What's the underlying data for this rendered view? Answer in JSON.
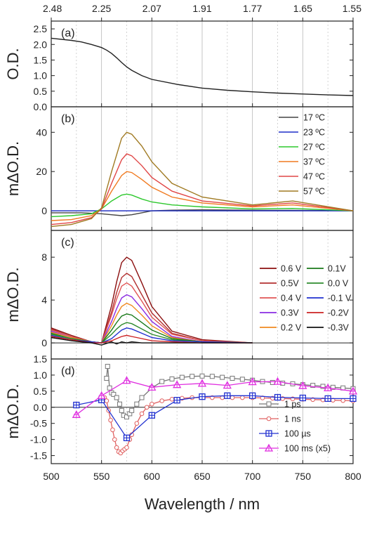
{
  "chart_data": {
    "type": "line",
    "xlabel": "Wavelength / nm",
    "x_ticks": [
      "500",
      "550",
      "600",
      "650",
      "700",
      "750",
      "800"
    ],
    "xlim": [
      500,
      800
    ],
    "energy_axis": {
      "ticks": [
        {
          "label": "2.48",
          "nm": 500
        },
        {
          "label": "2.25",
          "nm": 550
        },
        {
          "label": "2.07",
          "nm": 600
        },
        {
          "label": "1.91",
          "nm": 650
        },
        {
          "label": "1.77",
          "nm": 700
        },
        {
          "label": "1.65",
          "nm": 750
        },
        {
          "label": "1.55",
          "nm": 800
        }
      ]
    },
    "panels": [
      {
        "label": "(a)",
        "ylabel": "O.D.",
        "ylim": [
          0,
          2.75
        ],
        "y_ticks": [
          "0.0",
          "0.5",
          "1.0",
          "1.5",
          "2.0",
          "2.5"
        ],
        "series": [
          {
            "color": "#222222",
            "marker": "none",
            "x": [
              500,
              520,
              530,
              540,
              550,
              555,
              560,
              565,
              570,
              575,
              580,
              590,
              600,
              625,
              650,
              675,
              700,
              725,
              750,
              775,
              800
            ],
            "y": [
              2.2,
              2.13,
              2.08,
              2.0,
              1.9,
              1.82,
              1.71,
              1.57,
              1.42,
              1.28,
              1.17,
              1.0,
              0.88,
              0.72,
              0.6,
              0.53,
              0.48,
              0.44,
              0.41,
              0.38,
              0.36
            ]
          }
        ]
      },
      {
        "label": "(b)",
        "ylabel": "mΔO.D.",
        "ylim": [
          -10,
          53
        ],
        "y_ticks": [
          "0",
          "20",
          "40"
        ],
        "legend_position": "top-right",
        "series": [
          {
            "name": "17 ºC",
            "color": "#444444",
            "marker": "none",
            "x": [
              500,
              530,
              550,
              560,
              570,
              580,
              590,
              600,
              620,
              650,
              700,
              750,
              800
            ],
            "y": [
              -1,
              -1,
              -1.5,
              -2,
              -2.5,
              -2,
              -1,
              0,
              0.3,
              0.5,
              0.3,
              0.2,
              0
            ]
          },
          {
            "name": "23 ºC",
            "color": "#1f2fc8",
            "marker": "none",
            "x": [
              500,
              550,
              600,
              650,
              700,
              750,
              800
            ],
            "y": [
              0,
              0,
              0,
              0,
              0,
              0,
              0
            ]
          },
          {
            "name": "27 ºC",
            "color": "#2dc82d",
            "marker": "none",
            "x": [
              500,
              520,
              540,
              550,
              560,
              570,
              575,
              580,
              590,
              600,
              620,
              650,
              700,
              740,
              800
            ],
            "y": [
              -3,
              -2.5,
              -1.5,
              1,
              5,
              8,
              8.5,
              8,
              6,
              4.5,
              3,
              2,
              1,
              1.2,
              0
            ]
          },
          {
            "name": "37 ºC",
            "color": "#f07a20",
            "marker": "none",
            "x": [
              500,
              520,
              540,
              550,
              560,
              570,
              575,
              580,
              590,
              600,
              620,
              650,
              700,
              740,
              800
            ],
            "y": [
              -5,
              -4.5,
              -2.5,
              1,
              10,
              18,
              20,
              19.5,
              16,
              12,
              7,
              4,
              2,
              3,
              0
            ]
          },
          {
            "name": "47 ºC",
            "color": "#e04646",
            "marker": "none",
            "x": [
              500,
              520,
              540,
              550,
              560,
              570,
              575,
              580,
              590,
              600,
              620,
              650,
              700,
              740,
              800
            ],
            "y": [
              -7,
              -6,
              -3.5,
              1,
              14,
              26,
              29,
              28,
              23,
              17,
              10,
              5,
              2.5,
              4,
              0
            ]
          },
          {
            "name": "57 ºC",
            "color": "#a07a22",
            "marker": "none",
            "x": [
              500,
              520,
              540,
              550,
              560,
              570,
              575,
              580,
              590,
              600,
              620,
              650,
              700,
              740,
              800
            ],
            "y": [
              -8,
              -7,
              -4,
              1.5,
              20,
              37,
              40,
              39,
              33,
              25,
              14,
              7,
              3,
              5,
              0
            ]
          }
        ]
      },
      {
        "label": "(c)",
        "ylabel": "mΔO.D.",
        "ylim": [
          -1.5,
          10.5
        ],
        "y_ticks": [
          "0",
          "4",
          "8"
        ],
        "legend_position": "top-right",
        "series": [
          {
            "name": "0.6 V",
            "color": "#8b0f0f",
            "marker": "none",
            "x": [
              500,
              520,
              540,
              550,
              560,
              565,
              570,
              575,
              580,
              590,
              600,
              620,
              650,
              700
            ],
            "y": [
              1.4,
              0.7,
              0.1,
              0,
              3.5,
              5.7,
              7.5,
              8.0,
              7.7,
              5.6,
              3.4,
              1.1,
              0.3,
              0
            ]
          },
          {
            "name": "0.5V",
            "color": "#b23030",
            "marker": "none",
            "x": [
              500,
              520,
              540,
              550,
              560,
              565,
              570,
              575,
              580,
              590,
              600,
              620,
              650,
              700
            ],
            "y": [
              1.3,
              0.6,
              0.1,
              0,
              2.9,
              4.7,
              6.1,
              6.5,
              6.2,
              4.5,
              2.8,
              0.9,
              0.2,
              0
            ]
          },
          {
            "name": "0.4 V",
            "color": "#e05555",
            "marker": "none",
            "x": [
              500,
              520,
              540,
              550,
              560,
              565,
              570,
              575,
              580,
              590,
              600,
              620,
              650,
              700
            ],
            "y": [
              1.2,
              0.6,
              0.1,
              0,
              2.6,
              4.1,
              5.3,
              5.6,
              5.3,
              3.9,
              2.4,
              0.8,
              0.2,
              0
            ]
          },
          {
            "name": "0.3V",
            "color": "#8a2be2",
            "marker": "none",
            "x": [
              500,
              520,
              540,
              550,
              560,
              565,
              570,
              575,
              580,
              590,
              600,
              620,
              650,
              700
            ],
            "y": [
              1.1,
              0.5,
              0.1,
              0,
              2.0,
              3.2,
              4.2,
              4.5,
              4.3,
              3.2,
              2.0,
              0.6,
              0.1,
              0
            ]
          },
          {
            "name": "0.2 V",
            "color": "#f08a20",
            "marker": "none",
            "x": [
              500,
              520,
              540,
              550,
              560,
              565,
              570,
              575,
              580,
              590,
              600,
              620,
              650,
              700
            ],
            "y": [
              1.0,
              0.5,
              0.1,
              0,
              1.6,
              2.6,
              3.4,
              3.7,
              3.5,
              2.6,
              1.6,
              0.5,
              0.1,
              0
            ]
          },
          {
            "name": "0.1V",
            "color": "#1a7a1a",
            "marker": "none",
            "x": [
              500,
              520,
              540,
              550,
              560,
              565,
              570,
              575,
              580,
              590,
              600,
              620,
              650,
              700
            ],
            "y": [
              0.9,
              0.4,
              0.1,
              0,
              1.2,
              1.9,
              2.5,
              2.7,
              2.6,
              1.9,
              1.2,
              0.4,
              0.1,
              0
            ]
          },
          {
            "name": "0.0 V",
            "color": "#2e8b2e",
            "marker": "none",
            "x": [
              500,
              520,
              540,
              550,
              560,
              565,
              570,
              575,
              580,
              590,
              600,
              620,
              650,
              700
            ],
            "y": [
              0.8,
              0.4,
              0.1,
              0,
              0.8,
              1.3,
              1.7,
              1.9,
              1.8,
              1.3,
              0.8,
              0.3,
              0.1,
              0
            ]
          },
          {
            "name": "-0.1 V",
            "color": "#2030d0",
            "marker": "none",
            "x": [
              500,
              520,
              540,
              550,
              560,
              565,
              570,
              575,
              580,
              590,
              600,
              620,
              650,
              700
            ],
            "y": [
              0.7,
              0.3,
              0.1,
              0,
              0.4,
              0.8,
              1.2,
              1.4,
              1.3,
              0.9,
              0.5,
              0.2,
              0.1,
              0
            ]
          },
          {
            "name": "-0.2V",
            "color": "#cc2222",
            "marker": "none",
            "x": [
              500,
              520,
              540,
              550,
              560,
              565,
              570,
              575,
              580,
              590,
              600,
              620,
              650,
              700
            ],
            "y": [
              0.6,
              0.3,
              0,
              0,
              0.2,
              0.4,
              0.6,
              0.7,
              0.6,
              0.4,
              0.2,
              0.1,
              0,
              0
            ]
          },
          {
            "name": "-0.3V",
            "color": "#111111",
            "marker": "none",
            "x": [
              500,
              520,
              540,
              550,
              560,
              565,
              570,
              575,
              580,
              590,
              600,
              620,
              650,
              700
            ],
            "y": [
              0.5,
              0.2,
              0,
              -0.2,
              0.1,
              -0.1,
              0.1,
              0,
              0.1,
              0,
              0,
              0,
              0,
              0
            ]
          }
        ]
      },
      {
        "label": "(d)",
        "ylabel": "mΔO.D.",
        "ylim": [
          -1.75,
          1.5
        ],
        "y_ticks": [
          "-1.5",
          "-1.0",
          "-0.5",
          "0.0",
          "0.5",
          "1.0",
          "1.5"
        ],
        "legend_position": "bottom-right",
        "series": [
          {
            "name": "1 ps",
            "color": "#777777",
            "marker": "square",
            "x": [
              555,
              556,
              558,
              560,
              562,
              565,
              568,
              570,
              572,
              575,
              578,
              580,
              585,
              590,
              600,
              610,
              620,
              630,
              640,
              650,
              660,
              670,
              680,
              690,
              700,
              710,
              720,
              730,
              740,
              750,
              760,
              770,
              780,
              790,
              800
            ],
            "y": [
              0.9,
              1.27,
              0.6,
              0.45,
              0.4,
              0.3,
              0.1,
              -0.1,
              -0.25,
              -0.3,
              -0.2,
              -0.1,
              0.1,
              0.3,
              0.6,
              0.8,
              0.88,
              0.93,
              0.96,
              0.97,
              0.96,
              0.93,
              0.9,
              0.87,
              0.84,
              0.8,
              0.77,
              0.75,
              0.73,
              0.7,
              0.68,
              0.65,
              0.62,
              0.6,
              0.58
            ]
          },
          {
            "name": "1 ns",
            "color": "#e06060",
            "marker": "circle",
            "x": [
              553,
              555,
              557,
              559,
              561,
              563,
              565,
              567,
              569,
              571,
              573,
              575,
              578,
              580,
              585,
              590,
              595,
              600,
              610,
              620,
              630,
              640,
              650,
              660,
              670,
              680,
              690,
              700,
              710,
              720,
              730,
              740,
              750,
              760,
              770,
              780,
              790,
              800
            ],
            "y": [
              0.3,
              0.2,
              -0.1,
              -0.4,
              -0.7,
              -1.0,
              -1.25,
              -1.38,
              -1.42,
              -1.35,
              -1.3,
              -1.25,
              -1.0,
              -0.85,
              -0.5,
              -0.2,
              0.0,
              0.1,
              0.2,
              0.25,
              0.28,
              0.3,
              0.3,
              0.3,
              0.3,
              0.3,
              0.3,
              0.3,
              0.29,
              0.28,
              0.27,
              0.26,
              0.25,
              0.24,
              0.23,
              0.22,
              0.21,
              0.2
            ]
          },
          {
            "name": "100 µs",
            "color": "#2030d0",
            "marker": "square-cross",
            "x": [
              525,
              550,
              575,
              600,
              625,
              650,
              675,
              700,
              725,
              750,
              775,
              800
            ],
            "y": [
              0.07,
              0.23,
              -0.95,
              -0.25,
              0.22,
              0.33,
              0.36,
              0.36,
              0.31,
              0.29,
              0.27,
              0.27
            ]
          },
          {
            "name": "100 ms (x5)",
            "color": "#e030e0",
            "marker": "triangle",
            "x": [
              525,
              550,
              575,
              600,
              625,
              650,
              675,
              700,
              725,
              750,
              775,
              800
            ],
            "y": [
              -0.23,
              0.36,
              0.83,
              0.62,
              0.7,
              0.74,
              0.68,
              0.79,
              0.8,
              0.67,
              0.6,
              0.5
            ]
          }
        ]
      }
    ]
  }
}
